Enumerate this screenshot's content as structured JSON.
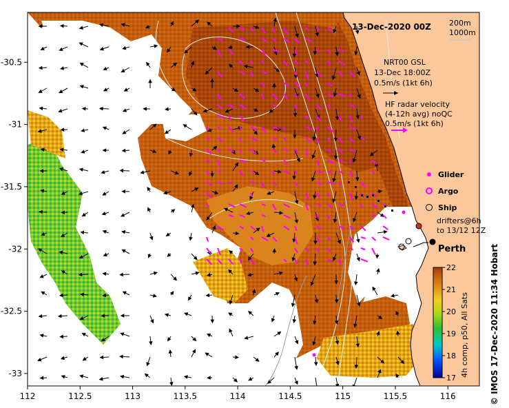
{
  "title": "13-Dec-2020 00Z",
  "depth_labels": [
    "200m",
    "1000m"
  ],
  "x_axis": {
    "ticks": [
      "112",
      "112.5",
      "113",
      "113.5",
      "114",
      "114.5",
      "115",
      "115.5",
      "116"
    ],
    "range": [
      112,
      116.3
    ]
  },
  "y_axis": {
    "ticks": [
      "-30.5",
      "-31",
      "-31.5",
      "-32",
      "-32.5",
      "-33"
    ],
    "range": [
      -33.1,
      -30.1
    ]
  },
  "current_legend": {
    "gsl_title": "NRT00 GSL",
    "gsl_time": "13-Dec 18:00Z",
    "gsl_scale": "0.5m/s (1kt 6h)",
    "hf_title": "HF radar velocity",
    "hf_avg": "(4-12h avg) noQC",
    "hf_scale": "0.5m/s (1kt 6h)"
  },
  "platform_legend": {
    "glider": "Glider",
    "argo": "Argo",
    "ship": "Ship",
    "drifters_line1": "drifters@6h",
    "drifters_line2": "to 13/12 12Z"
  },
  "city": {
    "name": "Perth",
    "lon": 115.86,
    "lat": -31.95
  },
  "colorbar": {
    "ticks": [
      "22",
      "21",
      "20",
      "19",
      "18",
      "17"
    ],
    "label": "4h comp, p50, All Sats",
    "min": 17,
    "max": 22
  },
  "credit": "© IMOS 17-Dec-2020 11:34 Hobart",
  "colors": {
    "land": "#fcc89b",
    "warm_dark": "#b04a08",
    "warm_mid": "#c8600a",
    "warm_light": "#dd8a1a",
    "hf_vector": "#ff00ff",
    "gsl_vector": "#000000"
  }
}
